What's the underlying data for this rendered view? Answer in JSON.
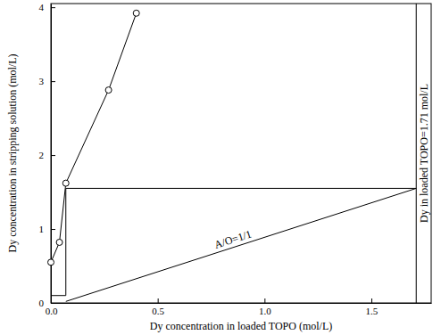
{
  "chart_data": {
    "type": "line",
    "x_label": "Dy concentration in loaded TOPO (mol/L)",
    "y_label": "Dy concentration in stripping solution (mol/L)",
    "xlim": [
      0,
      1.78
    ],
    "ylim": [
      0,
      4.05
    ],
    "xticks": [
      {
        "value": 0,
        "label": "0.0"
      },
      {
        "value": 0.5,
        "label": "0.5"
      },
      {
        "value": 1.0,
        "label": "1.0"
      },
      {
        "value": 1.5,
        "label": "1.5"
      }
    ],
    "yticks": [
      0,
      1,
      2,
      3,
      4
    ],
    "series": [
      {
        "x": [
          0.0,
          0.04,
          0.07,
          0.27,
          0.4
        ],
        "values": [
          0.55,
          0.82,
          1.62,
          2.88,
          3.92
        ],
        "color": "#000000",
        "marker": "circle",
        "line_style": "solid"
      },
      {
        "x": [
          0.07,
          1.71
        ],
        "values": [
          0.02,
          1.55
        ],
        "color": "#000000",
        "marker": "none",
        "line_style": "solid"
      },
      {
        "x": [
          0.0,
          0.07,
          0.07,
          1.71
        ],
        "values": [
          0.1,
          0.1,
          1.55,
          1.55
        ],
        "color": "#000000",
        "marker": "none",
        "line_style": "solid"
      }
    ],
    "annotations": [
      {
        "text": "A/O=1/1",
        "series": 1
      }
    ],
    "reference_lines": [
      {
        "x": 1.71,
        "text": "Dy in loaded TOPO=1.71 mol/L"
      }
    ]
  }
}
